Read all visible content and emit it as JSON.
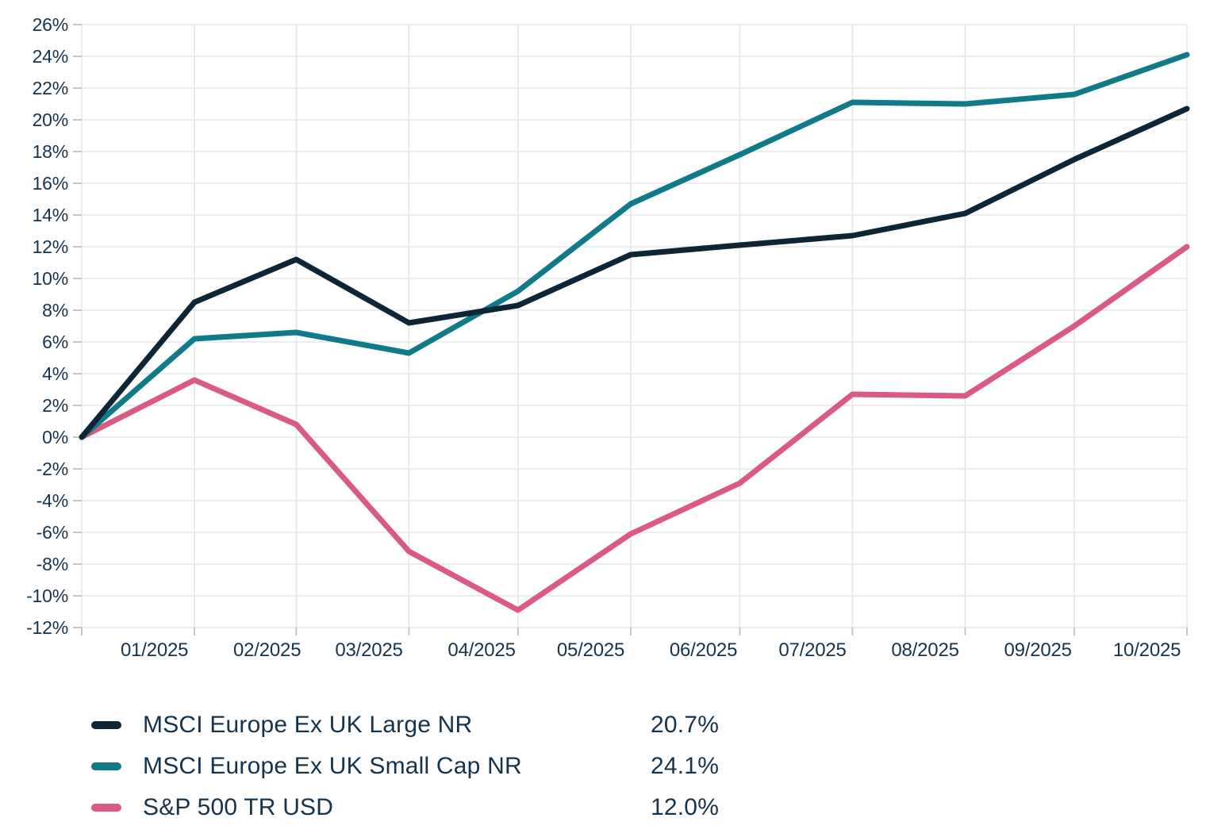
{
  "chart_data": {
    "type": "line",
    "title": "",
    "xlabel": "",
    "ylabel": "",
    "ylim": [
      -12,
      26
    ],
    "y_tick_step": 2,
    "y_tick_suffix": "%",
    "grid": true,
    "legend_position": "bottom-left",
    "x_tick_labels": [
      "01/2025",
      "02/2025",
      "03/2025",
      "04/2025",
      "05/2025",
      "06/2025",
      "07/2025",
      "08/2025",
      "09/2025",
      "10/2025"
    ],
    "month_days": [
      31,
      28,
      31,
      30,
      31,
      30,
      31,
      31,
      30,
      31
    ],
    "series": [
      {
        "name": "MSCI Europe Ex UK Large NR",
        "display_value": "20.7%",
        "color": "#0e2536",
        "values": [
          0,
          8.5,
          11.2,
          7.2,
          8.3,
          11.5,
          12.1,
          12.7,
          14.1,
          17.5,
          20.7
        ]
      },
      {
        "name": "MSCI Europe Ex UK Small Cap NR",
        "display_value": "24.1%",
        "color": "#117a89",
        "values": [
          0,
          6.2,
          6.6,
          5.3,
          9.2,
          14.7,
          17.8,
          21.1,
          21.0,
          21.6,
          24.1
        ]
      },
      {
        "name": "S&P 500 TR USD",
        "display_value": "12.0%",
        "color": "#da5a82",
        "values": [
          0,
          3.6,
          0.8,
          -7.2,
          -10.9,
          -6.1,
          -2.9,
          2.7,
          2.6,
          7.0,
          12.0
        ]
      }
    ]
  },
  "colors": {
    "background": "#ffffff",
    "text": "#16334d",
    "grid": "#e4e5e8",
    "tick": "#c3c7cc"
  }
}
